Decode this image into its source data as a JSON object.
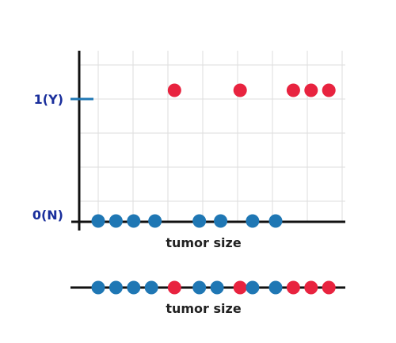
{
  "chart_data": [
    {
      "type": "scatter",
      "title": "",
      "xlabel": "tumor size",
      "ylabel": "",
      "ytick_labels": [
        "0(N)",
        "1(Y)"
      ],
      "y_values": [
        0,
        1
      ],
      "grid": true,
      "series": [
        {
          "class": "N",
          "color": "#1f77b4",
          "points": [
            {
              "x": 1,
              "y": 0
            },
            {
              "x": 2,
              "y": 0
            },
            {
              "x": 3,
              "y": 0
            },
            {
              "x": 4.2,
              "y": 0
            },
            {
              "x": 6.7,
              "y": 0
            },
            {
              "x": 7.9,
              "y": 0
            },
            {
              "x": 9.7,
              "y": 0
            },
            {
              "x": 11,
              "y": 0
            }
          ]
        },
        {
          "class": "Y",
          "color": "#e8233f",
          "points": [
            {
              "x": 5.3,
              "y": 1
            },
            {
              "x": 9,
              "y": 1
            },
            {
              "x": 12,
              "y": 1
            },
            {
              "x": 13,
              "y": 1
            },
            {
              "x": 14,
              "y": 1
            }
          ]
        }
      ]
    },
    {
      "type": "scatter",
      "title": "",
      "xlabel": "tumor size",
      "ylabel": "",
      "grid": false,
      "points": [
        {
          "x": 1,
          "class": "N"
        },
        {
          "x": 2,
          "class": "N"
        },
        {
          "x": 3,
          "class": "N"
        },
        {
          "x": 4,
          "class": "N"
        },
        {
          "x": 5.3,
          "class": "Y"
        },
        {
          "x": 6.7,
          "class": "N"
        },
        {
          "x": 7.7,
          "class": "N"
        },
        {
          "x": 9,
          "class": "Y"
        },
        {
          "x": 9.7,
          "class": "N"
        },
        {
          "x": 11,
          "class": "N"
        },
        {
          "x": 12,
          "class": "Y"
        },
        {
          "x": 13,
          "class": "Y"
        },
        {
          "x": 14,
          "class": "Y"
        }
      ]
    }
  ],
  "colors": {
    "N": "#1f77b4",
    "Y": "#e8233f",
    "tick_label": "#1a2f9c",
    "axis": "#111111",
    "grid": "#dddddd"
  }
}
